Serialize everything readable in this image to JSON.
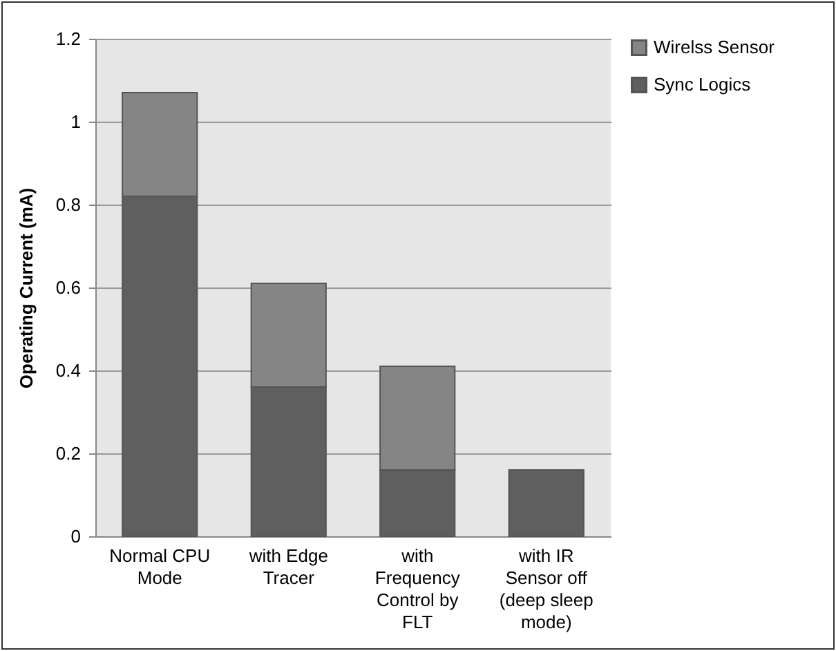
{
  "chart_data": {
    "type": "bar",
    "stacked": true,
    "ylabel": "Operating Current (mA)",
    "categories": [
      "Normal CPU Mode",
      "with Edge Tracer",
      "with Frequency Control by FLT",
      "with IR Sensor off (deep sleep mode)"
    ],
    "series": [
      {
        "name": "Sync Logics",
        "color": "#5f5f5f",
        "values": [
          0.82,
          0.36,
          0.16,
          0.16
        ]
      },
      {
        "name": "Wirelss Sensor",
        "color": "#858585",
        "values": [
          0.25,
          0.25,
          0.25,
          null
        ]
      }
    ],
    "ylim": [
      0,
      1.2
    ],
    "yticks": [
      0,
      0.2,
      0.4,
      0.6,
      0.8,
      1,
      1.2
    ],
    "grid": "y",
    "legend": "right"
  }
}
